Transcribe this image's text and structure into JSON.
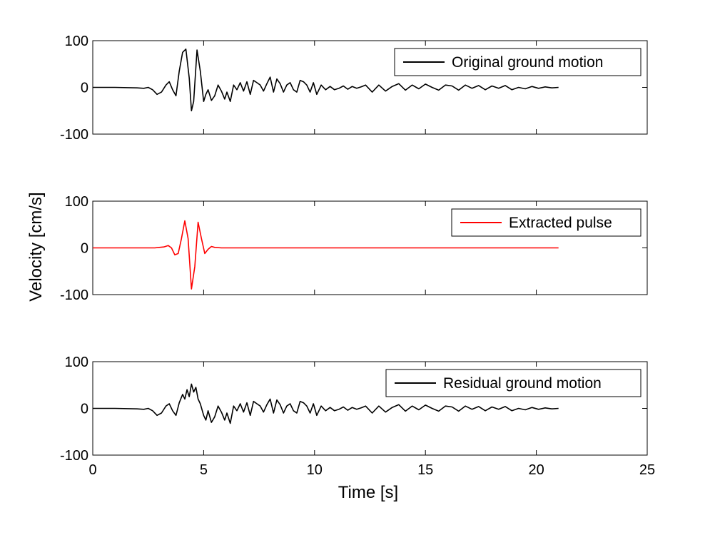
{
  "chart_data": {
    "type": "line",
    "xlabel": "Time [s]",
    "ylabel": "Velocity [cm/s]",
    "xlim": [
      0,
      25
    ],
    "xticks": [
      0,
      5,
      10,
      15,
      20,
      25
    ],
    "xtick_labels": [
      "0",
      "5",
      "10",
      "15",
      "20",
      "25"
    ],
    "ylim": [
      -100,
      100
    ],
    "yticks": [
      100,
      0,
      -100
    ],
    "ytick_labels": [
      "100",
      "0",
      "-100"
    ],
    "grid": false,
    "legend_position": "top-right",
    "panels": [
      {
        "series": [
          {
            "name": "Original ground motion",
            "color": "#000000",
            "x": [
              0,
              1,
              2,
              2.3,
              2.5,
              2.7,
              2.9,
              3.1,
              3.3,
              3.45,
              3.6,
              3.75,
              3.9,
              4.05,
              4.2,
              4.35,
              4.45,
              4.55,
              4.7,
              4.85,
              5.0,
              5.1,
              5.2,
              5.35,
              5.5,
              5.65,
              5.8,
              5.95,
              6.05,
              6.2,
              6.35,
              6.5,
              6.65,
              6.8,
              6.95,
              7.1,
              7.25,
              7.4,
              7.55,
              7.7,
              7.85,
              8.0,
              8.15,
              8.3,
              8.45,
              8.6,
              8.75,
              8.9,
              9.05,
              9.2,
              9.35,
              9.5,
              9.65,
              9.8,
              9.95,
              10.1,
              10.3,
              10.5,
              10.7,
              10.9,
              11.1,
              11.3,
              11.5,
              11.7,
              11.9,
              12.1,
              12.3,
              12.6,
              12.9,
              13.2,
              13.5,
              13.8,
              14.1,
              14.4,
              14.7,
              15.0,
              15.3,
              15.6,
              15.9,
              16.2,
              16.5,
              16.8,
              17.1,
              17.4,
              17.7,
              18.0,
              18.3,
              18.6,
              18.9,
              19.2,
              19.5,
              19.8,
              20.1,
              20.4,
              20.7,
              21.0
            ],
            "y": [
              0,
              0,
              -1,
              -2,
              0,
              -5,
              -15,
              -10,
              5,
              12,
              -5,
              -18,
              35,
              75,
              82,
              20,
              -50,
              -30,
              80,
              35,
              -30,
              -15,
              -5,
              -28,
              -18,
              5,
              -8,
              -25,
              -10,
              -30,
              5,
              -5,
              10,
              -8,
              12,
              -15,
              15,
              10,
              5,
              -8,
              8,
              22,
              -10,
              18,
              8,
              -10,
              5,
              10,
              -5,
              -10,
              15,
              12,
              5,
              -10,
              10,
              -15,
              5,
              -5,
              2,
              -5,
              -2,
              3,
              -4,
              2,
              -2,
              1,
              5,
              -10,
              5,
              -8,
              2,
              8,
              -6,
              5,
              -3,
              7,
              0,
              -6,
              5,
              3,
              -6,
              5,
              -2,
              4,
              -5,
              3,
              -2,
              4,
              -5,
              0,
              -3,
              2,
              -2,
              1,
              -1,
              0
            ]
          }
        ]
      },
      {
        "series": [
          {
            "name": "Extracted pulse",
            "color": "#ff0000",
            "x": [
              0,
              2.5,
              2.8,
              3.0,
              3.2,
              3.4,
              3.55,
              3.7,
              3.85,
              4.0,
              4.15,
              4.3,
              4.45,
              4.6,
              4.75,
              4.9,
              5.05,
              5.2,
              5.35,
              5.5,
              5.8,
              6,
              21
            ],
            "y": [
              0,
              0,
              0,
              1,
              2,
              5,
              0,
              -15,
              -12,
              20,
              58,
              20,
              -88,
              -40,
              55,
              20,
              -12,
              -3,
              3,
              1,
              0,
              0,
              0
            ]
          }
        ]
      },
      {
        "series": [
          {
            "name": "Residual ground motion",
            "color": "#000000",
            "x": [
              0,
              1,
              2,
              2.3,
              2.5,
              2.7,
              2.9,
              3.1,
              3.3,
              3.45,
              3.6,
              3.75,
              3.9,
              4.05,
              4.15,
              4.25,
              4.35,
              4.45,
              4.55,
              4.65,
              4.75,
              4.85,
              5.0,
              5.1,
              5.2,
              5.35,
              5.5,
              5.65,
              5.8,
              5.95,
              6.05,
              6.2,
              6.35,
              6.5,
              6.65,
              6.8,
              6.95,
              7.1,
              7.25,
              7.4,
              7.55,
              7.7,
              7.85,
              8.0,
              8.15,
              8.3,
              8.45,
              8.6,
              8.75,
              8.9,
              9.05,
              9.2,
              9.35,
              9.5,
              9.65,
              9.8,
              9.95,
              10.1,
              10.3,
              10.5,
              10.7,
              10.9,
              11.1,
              11.3,
              11.5,
              11.7,
              11.9,
              12.1,
              12.3,
              12.6,
              12.9,
              13.2,
              13.5,
              13.8,
              14.1,
              14.4,
              14.7,
              15.0,
              15.3,
              15.6,
              15.9,
              16.2,
              16.5,
              16.8,
              17.1,
              17.4,
              17.7,
              18.0,
              18.3,
              18.6,
              18.9,
              19.2,
              19.5,
              19.8,
              20.1,
              20.4,
              20.7,
              21.0
            ],
            "y": [
              0,
              0,
              -1,
              -2,
              0,
              -5,
              -15,
              -10,
              5,
              10,
              -5,
              -15,
              12,
              30,
              20,
              40,
              25,
              52,
              35,
              45,
              20,
              10,
              -15,
              -25,
              -5,
              -30,
              -18,
              5,
              -8,
              -25,
              -10,
              -32,
              5,
              -5,
              10,
              -8,
              12,
              -15,
              15,
              10,
              5,
              -8,
              8,
              20,
              -10,
              18,
              8,
              -10,
              5,
              10,
              -5,
              -10,
              15,
              12,
              5,
              -10,
              10,
              -15,
              5,
              -5,
              2,
              -5,
              -2,
              3,
              -4,
              2,
              -2,
              1,
              5,
              -10,
              5,
              -8,
              2,
              8,
              -6,
              5,
              -3,
              7,
              0,
              -6,
              5,
              3,
              -6,
              5,
              -2,
              4,
              -5,
              3,
              -2,
              4,
              -5,
              0,
              -3,
              2,
              -2,
              1,
              -1,
              0
            ]
          }
        ]
      }
    ]
  }
}
